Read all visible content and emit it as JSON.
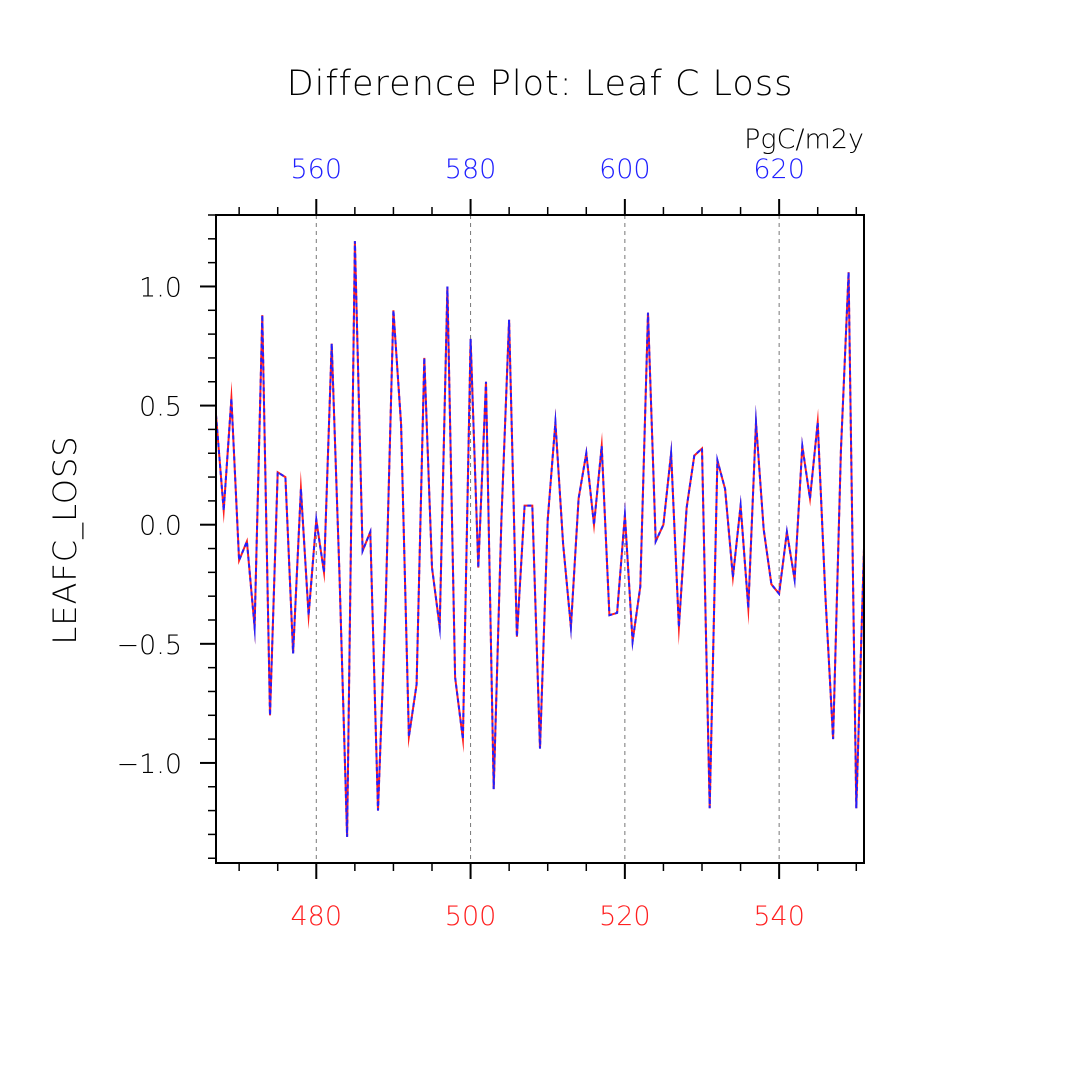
{
  "colors": {
    "bottom_axis": "#ff2020",
    "top_axis": "#2020ff",
    "series_red": "#ff2020",
    "series_blue": "#2020ff",
    "axis": "#000000",
    "grid": "#777777"
  },
  "chart_data": {
    "type": "line",
    "title": "Difference Plot: Leaf C Loss",
    "units": "PgC/m2y",
    "ylabel": "LEAFC_LOSS",
    "xlabel": "",
    "xlim": [
      467,
      551
    ],
    "ylim": [
      -1.42,
      1.3
    ],
    "grid": "vertical dashed at major bottom ticks",
    "yticks": [
      1.0,
      0.5,
      0.0,
      -0.5,
      -1.0
    ],
    "ytick_labels": [
      "1.0",
      "0.5",
      "0.0",
      "−0.5",
      "−1.0"
    ],
    "xticks_bottom": [
      480,
      500,
      520,
      540
    ],
    "xtick_labels_bottom": [
      "480",
      "500",
      "520",
      "540"
    ],
    "top_axis_offset": 80,
    "xticks_top": [
      560,
      580,
      600,
      620
    ],
    "xtick_labels_top": [
      "560",
      "580",
      "600",
      "620"
    ],
    "series": [
      {
        "name": "line-red",
        "style": "solid",
        "x": [
          467,
          468,
          469,
          470,
          471,
          472,
          473,
          474,
          475,
          476,
          477,
          478,
          479,
          480,
          481,
          482,
          483,
          484,
          485,
          486,
          487,
          488,
          489,
          490,
          491,
          492,
          493,
          494,
          495,
          496,
          497,
          498,
          499,
          500,
          501,
          502,
          503,
          504,
          505,
          506,
          507,
          508,
          509,
          510,
          511,
          512,
          513,
          514,
          515,
          516,
          517,
          518,
          519,
          520,
          521,
          522,
          523,
          524,
          525,
          526,
          527,
          528,
          529,
          530,
          531,
          532,
          533,
          534,
          535,
          536,
          537,
          538,
          539,
          540,
          541,
          542,
          543,
          544,
          545,
          546,
          547,
          548,
          549,
          550,
          551
        ],
        "values": [
          0.46,
          0.06,
          0.53,
          -0.15,
          -0.07,
          -0.43,
          0.88,
          -0.8,
          0.22,
          0.2,
          -0.54,
          0.15,
          -0.38,
          0.02,
          -0.2,
          0.76,
          -0.2,
          -1.31,
          1.19,
          -0.11,
          -0.03,
          -1.2,
          -0.33,
          0.9,
          0.42,
          -0.89,
          -0.67,
          0.7,
          -0.18,
          -0.43,
          1.0,
          -0.64,
          -0.9,
          0.78,
          -0.18,
          0.6,
          -1.11,
          0.02,
          0.86,
          -0.47,
          0.08,
          0.08,
          -0.94,
          0.02,
          0.43,
          -0.08,
          -0.43,
          0.11,
          0.3,
          0.0,
          0.33,
          -0.38,
          -0.37,
          0.04,
          -0.49,
          -0.26,
          0.89,
          -0.07,
          0.0,
          0.3,
          -0.43,
          0.07,
          0.29,
          0.32,
          -1.19,
          0.27,
          0.15,
          -0.22,
          0.08,
          -0.35,
          0.43,
          -0.02,
          -0.25,
          -0.29,
          -0.03,
          -0.23,
          0.33,
          0.11,
          0.43,
          -0.3,
          -0.9,
          0.31,
          1.06,
          -1.19,
          -0.1
        ]
      },
      {
        "name": "line-blue",
        "style": "dashed",
        "x": [
          467,
          468,
          469,
          470,
          471,
          472,
          473,
          474,
          475,
          476,
          477,
          478,
          479,
          480,
          481,
          482,
          483,
          484,
          485,
          486,
          487,
          488,
          489,
          490,
          491,
          492,
          493,
          494,
          495,
          496,
          497,
          498,
          499,
          500,
          501,
          502,
          503,
          504,
          505,
          506,
          507,
          508,
          509,
          510,
          511,
          512,
          513,
          514,
          515,
          516,
          517,
          518,
          519,
          520,
          521,
          522,
          523,
          524,
          525,
          526,
          527,
          528,
          529,
          530,
          531,
          532,
          533,
          534,
          535,
          536,
          537,
          538,
          539,
          540,
          541,
          542,
          543,
          544,
          545,
          546,
          547,
          548,
          549,
          550,
          551
        ],
        "values": [
          0.46,
          0.06,
          0.53,
          -0.15,
          -0.07,
          -0.43,
          0.88,
          -0.8,
          0.22,
          0.2,
          -0.54,
          0.15,
          -0.38,
          0.02,
          -0.2,
          0.76,
          -0.2,
          -1.31,
          1.19,
          -0.11,
          -0.03,
          -1.2,
          -0.33,
          0.9,
          0.42,
          -0.89,
          -0.67,
          0.7,
          -0.18,
          -0.43,
          1.0,
          -0.64,
          -0.9,
          0.78,
          -0.18,
          0.6,
          -1.11,
          0.02,
          0.86,
          -0.47,
          0.08,
          0.08,
          -0.94,
          0.02,
          0.43,
          -0.08,
          -0.43,
          0.11,
          0.3,
          0.0,
          0.33,
          -0.38,
          -0.37,
          0.04,
          -0.49,
          -0.26,
          0.89,
          -0.07,
          0.0,
          0.3,
          -0.43,
          0.07,
          0.29,
          0.32,
          -1.19,
          0.27,
          0.15,
          -0.22,
          0.08,
          -0.35,
          0.43,
          -0.02,
          -0.25,
          -0.29,
          -0.03,
          -0.23,
          0.33,
          0.11,
          0.43,
          -0.3,
          -0.9,
          0.31,
          1.06,
          -1.19,
          -0.1
        ]
      }
    ]
  }
}
